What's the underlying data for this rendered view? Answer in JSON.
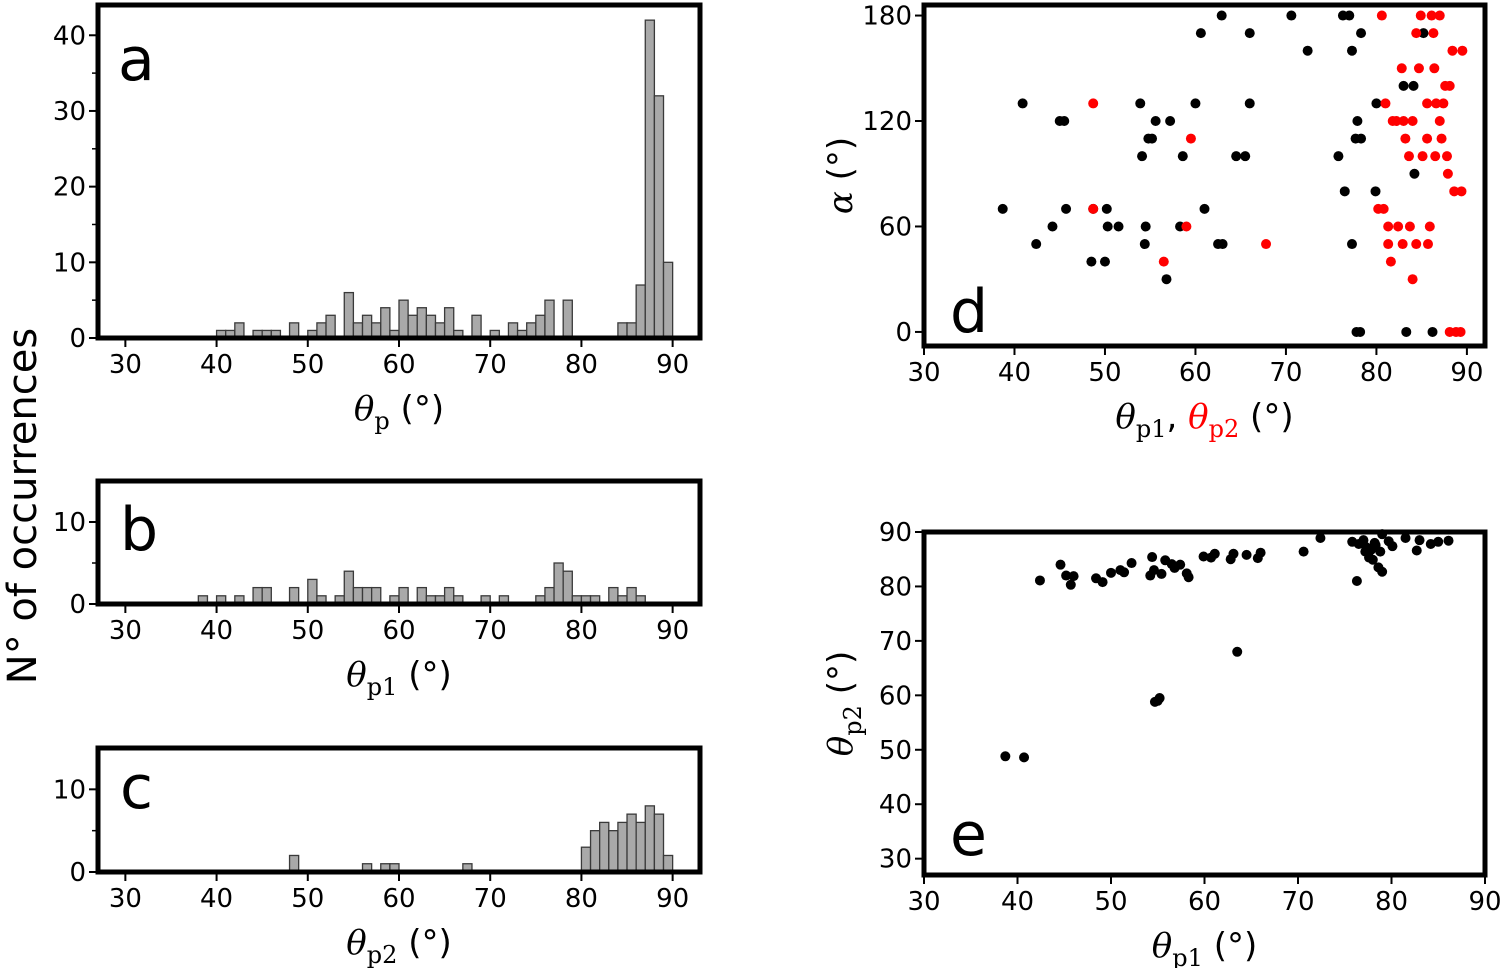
{
  "figure": {
    "ylabel_shared": "N° of occurrences"
  },
  "chart_data": [
    {
      "panel": "a",
      "type": "bar",
      "xlabel_symbol": "θ",
      "xlabel_sub": "p",
      "xlabel_unit": "(°)",
      "xlim": [
        27,
        93
      ],
      "ylim": [
        0,
        44
      ],
      "xticks": [
        "30",
        "40",
        "50",
        "60",
        "70",
        "80",
        "90"
      ],
      "yticks": [
        "0",
        "10",
        "20",
        "30",
        "40"
      ],
      "bin_width": 1,
      "bins": [
        [
          40,
          1
        ],
        [
          41,
          1
        ],
        [
          42,
          2
        ],
        [
          44,
          1
        ],
        [
          45,
          1
        ],
        [
          46,
          1
        ],
        [
          48,
          2
        ],
        [
          50,
          1
        ],
        [
          51,
          2
        ],
        [
          52,
          3
        ],
        [
          54,
          6
        ],
        [
          55,
          2
        ],
        [
          56,
          3
        ],
        [
          57,
          2
        ],
        [
          58,
          4
        ],
        [
          59,
          1
        ],
        [
          60,
          5
        ],
        [
          61,
          3
        ],
        [
          62,
          4
        ],
        [
          63,
          3
        ],
        [
          64,
          2
        ],
        [
          65,
          4
        ],
        [
          66,
          1
        ],
        [
          68,
          3
        ],
        [
          70,
          1
        ],
        [
          72,
          2
        ],
        [
          73,
          1
        ],
        [
          74,
          2
        ],
        [
          75,
          3
        ],
        [
          76,
          5
        ],
        [
          78,
          5
        ],
        [
          84,
          2
        ],
        [
          85,
          2
        ],
        [
          86,
          7
        ],
        [
          87,
          42
        ],
        [
          88,
          32
        ],
        [
          89,
          10
        ]
      ]
    },
    {
      "panel": "b",
      "type": "bar",
      "xlabel_symbol": "θ",
      "xlabel_sub": "p1",
      "xlabel_unit": "(°)",
      "xlim": [
        27,
        93
      ],
      "ylim": [
        0,
        15
      ],
      "xticks": [
        "30",
        "40",
        "50",
        "60",
        "70",
        "80",
        "90"
      ],
      "yticks": [
        "0",
        "10"
      ],
      "bin_width": 1,
      "bins": [
        [
          38,
          1
        ],
        [
          40,
          1
        ],
        [
          42,
          1
        ],
        [
          44,
          2
        ],
        [
          45,
          2
        ],
        [
          48,
          2
        ],
        [
          50,
          3
        ],
        [
          51,
          1
        ],
        [
          53,
          1
        ],
        [
          54,
          4
        ],
        [
          55,
          2
        ],
        [
          56,
          2
        ],
        [
          57,
          2
        ],
        [
          59,
          1
        ],
        [
          60,
          2
        ],
        [
          62,
          2
        ],
        [
          63,
          1
        ],
        [
          64,
          1
        ],
        [
          65,
          2
        ],
        [
          66,
          1
        ],
        [
          69,
          1
        ],
        [
          71,
          1
        ],
        [
          75,
          1
        ],
        [
          76,
          2
        ],
        [
          77,
          5
        ],
        [
          78,
          4
        ],
        [
          79,
          1
        ],
        [
          80,
          1
        ],
        [
          81,
          1
        ],
        [
          83,
          2
        ],
        [
          84,
          1
        ],
        [
          85,
          2
        ],
        [
          86,
          1
        ]
      ]
    },
    {
      "panel": "c",
      "type": "bar",
      "xlabel_symbol": "θ",
      "xlabel_sub": "p2",
      "xlabel_unit": "(°)",
      "xlim": [
        27,
        93
      ],
      "ylim": [
        0,
        15
      ],
      "xticks": [
        "30",
        "40",
        "50",
        "60",
        "70",
        "80",
        "90"
      ],
      "yticks": [
        "0",
        "10"
      ],
      "bin_width": 1,
      "bins": [
        [
          48,
          2
        ],
        [
          56,
          1
        ],
        [
          58,
          1
        ],
        [
          59,
          1
        ],
        [
          67,
          1
        ],
        [
          80,
          3
        ],
        [
          81,
          5
        ],
        [
          82,
          6
        ],
        [
          83,
          5
        ],
        [
          84,
          6
        ],
        [
          85,
          7
        ],
        [
          86,
          6
        ],
        [
          87,
          8
        ],
        [
          88,
          7
        ],
        [
          89,
          2
        ]
      ]
    },
    {
      "panel": "d",
      "type": "scatter",
      "xlabel_symbol": "θ",
      "xlabel_sub": "p1",
      "xlabel_sep": ",",
      "xlabel_symbol2": "θ",
      "xlabel_sub2": "p2",
      "xlabel_unit": "(°)",
      "ylabel_symbol": "α",
      "ylabel_unit": "(°)",
      "xlim": [
        30,
        92
      ],
      "ylim": [
        -8,
        186
      ],
      "xticks": [
        "30",
        "40",
        "50",
        "60",
        "70",
        "80",
        "90"
      ],
      "yticks": [
        "0",
        "60",
        "120",
        "180"
      ],
      "series": [
        {
          "color": "#000000",
          "points": [
            [
              38.7,
              70
            ],
            [
              40.9,
              130
            ],
            [
              42.4,
              50
            ],
            [
              44.2,
              60
            ],
            [
              45,
              120
            ],
            [
              45.7,
              70
            ],
            [
              45.5,
              120
            ],
            [
              48.5,
              40
            ],
            [
              48.7,
              70
            ],
            [
              50,
              40
            ],
            [
              50.2,
              70
            ],
            [
              50.3,
              60
            ],
            [
              51.5,
              60
            ],
            [
              53.9,
              130
            ],
            [
              54.1,
              100
            ],
            [
              54.4,
              50
            ],
            [
              54.5,
              60
            ],
            [
              54.8,
              110
            ],
            [
              55.2,
              110
            ],
            [
              55.6,
              120
            ],
            [
              56.8,
              30
            ],
            [
              57.2,
              120
            ],
            [
              58.3,
              60
            ],
            [
              58.6,
              100
            ],
            [
              60,
              130
            ],
            [
              60.6,
              170
            ],
            [
              61,
              70
            ],
            [
              62.5,
              50
            ],
            [
              62.9,
              180
            ],
            [
              63,
              50
            ],
            [
              64.5,
              100
            ],
            [
              65.5,
              100
            ],
            [
              66,
              170
            ],
            [
              66,
              130
            ],
            [
              70.6,
              180
            ],
            [
              72.4,
              160
            ],
            [
              75.8,
              100
            ],
            [
              76.3,
              180
            ],
            [
              76.5,
              80
            ],
            [
              77,
              180
            ],
            [
              77.3,
              160
            ],
            [
              77.3,
              50
            ],
            [
              77.7,
              110
            ],
            [
              77.8,
              0
            ],
            [
              77.9,
              120
            ],
            [
              78.2,
              0
            ],
            [
              78.3,
              110
            ],
            [
              78.3,
              170
            ],
            [
              79.9,
              80
            ],
            [
              80,
              130
            ],
            [
              83,
              140
            ],
            [
              83.3,
              0
            ],
            [
              84.1,
              140
            ],
            [
              84.2,
              90
            ],
            [
              85.2,
              170
            ],
            [
              86.2,
              0
            ]
          ]
        },
        {
          "color": "#ff0000",
          "points": [
            [
              48.7,
              130
            ],
            [
              48.7,
              70
            ],
            [
              56.5,
              40
            ],
            [
              59,
              60
            ],
            [
              59.5,
              110
            ],
            [
              67.8,
              50
            ],
            [
              80.2,
              70
            ],
            [
              80.6,
              180
            ],
            [
              80.8,
              70
            ],
            [
              81,
              130
            ],
            [
              81.3,
              60
            ],
            [
              81.3,
              50
            ],
            [
              81.6,
              40
            ],
            [
              81.8,
              120
            ],
            [
              82.2,
              120
            ],
            [
              82.4,
              60
            ],
            [
              82.8,
              150
            ],
            [
              82.9,
              50
            ],
            [
              83,
              120
            ],
            [
              83.2,
              110
            ],
            [
              83.6,
              100
            ],
            [
              83.7,
              60
            ],
            [
              84,
              120
            ],
            [
              84,
              30
            ],
            [
              84.4,
              50
            ],
            [
              84.4,
              170
            ],
            [
              84.7,
              150
            ],
            [
              84.9,
              180
            ],
            [
              85.1,
              100
            ],
            [
              85.6,
              130
            ],
            [
              85.6,
              110
            ],
            [
              85.7,
              50
            ],
            [
              85.9,
              60
            ],
            [
              86.1,
              180
            ],
            [
              86.3,
              170
            ],
            [
              86.4,
              150
            ],
            [
              86.5,
              100
            ],
            [
              86.6,
              130
            ],
            [
              87,
              180
            ],
            [
              87,
              120
            ],
            [
              87.2,
              110
            ],
            [
              87.4,
              130
            ],
            [
              87.6,
              140
            ],
            [
              87.8,
              100
            ],
            [
              87.9,
              90
            ],
            [
              88.1,
              140
            ],
            [
              88.1,
              0
            ],
            [
              88.4,
              160
            ],
            [
              88.6,
              80
            ],
            [
              88.8,
              0
            ],
            [
              89.3,
              0
            ],
            [
              89.4,
              80
            ],
            [
              89.5,
              160
            ]
          ]
        }
      ]
    },
    {
      "panel": "e",
      "type": "scatter",
      "xlabel_symbol": "θ",
      "xlabel_sub": "p1",
      "xlabel_unit": "(°)",
      "ylabel_symbol": "θ",
      "ylabel_sub": "p2",
      "ylabel_unit": "(°)",
      "xlim": [
        30,
        90
      ],
      "ylim": [
        27,
        90
      ],
      "xticks": [
        "30",
        "40",
        "50",
        "60",
        "70",
        "80",
        "90"
      ],
      "yticks": [
        "30",
        "40",
        "50",
        "60",
        "70",
        "80",
        "90"
      ],
      "series": [
        {
          "color": "#000000",
          "points": [
            [
              38.7,
              48.8
            ],
            [
              40.7,
              48.6
            ],
            [
              42.4,
              81.1
            ],
            [
              44.6,
              84
            ],
            [
              45.2,
              82
            ],
            [
              45.7,
              80.3
            ],
            [
              46,
              81.9
            ],
            [
              48.4,
              81.5
            ],
            [
              49.1,
              80.8
            ],
            [
              50,
              82.5
            ],
            [
              51,
              83
            ],
            [
              51.4,
              82.6
            ],
            [
              52.2,
              84.3
            ],
            [
              54.2,
              82
            ],
            [
              54.4,
              85.4
            ],
            [
              54.6,
              83
            ],
            [
              54.7,
              58.8
            ],
            [
              55,
              59
            ],
            [
              55.2,
              59.5
            ],
            [
              55.4,
              82.3
            ],
            [
              55.8,
              84.8
            ],
            [
              56.5,
              84.1
            ],
            [
              56.8,
              83.4
            ],
            [
              57.4,
              84
            ],
            [
              58.1,
              82.4
            ],
            [
              58.3,
              81.7
            ],
            [
              59.9,
              85.5
            ],
            [
              60.7,
              85.3
            ],
            [
              61.1,
              86
            ],
            [
              62.8,
              85
            ],
            [
              63.1,
              86
            ],
            [
              63.5,
              68
            ],
            [
              64.5,
              85.8
            ],
            [
              65.7,
              85.2
            ],
            [
              66,
              86.2
            ],
            [
              70.6,
              86.4
            ],
            [
              72.4,
              88.9
            ],
            [
              75.8,
              88.2
            ],
            [
              76.3,
              81
            ],
            [
              76.5,
              87.8
            ],
            [
              77,
              88.5
            ],
            [
              77.2,
              86.4
            ],
            [
              77.3,
              87.2
            ],
            [
              77.6,
              85.3
            ],
            [
              77.8,
              86.7
            ],
            [
              78,
              84.9
            ],
            [
              78.2,
              88
            ],
            [
              78.3,
              87.6
            ],
            [
              78.6,
              83.5
            ],
            [
              78.8,
              86.4
            ],
            [
              79,
              89.6
            ],
            [
              79,
              82.7
            ],
            [
              79.7,
              88.3
            ],
            [
              80.1,
              87.4
            ],
            [
              81.5,
              88.9
            ],
            [
              82.7,
              86.6
            ],
            [
              83,
              88.5
            ],
            [
              84.2,
              87.8
            ],
            [
              85,
              88.2
            ],
            [
              86.1,
              88.4
            ]
          ]
        }
      ]
    }
  ]
}
